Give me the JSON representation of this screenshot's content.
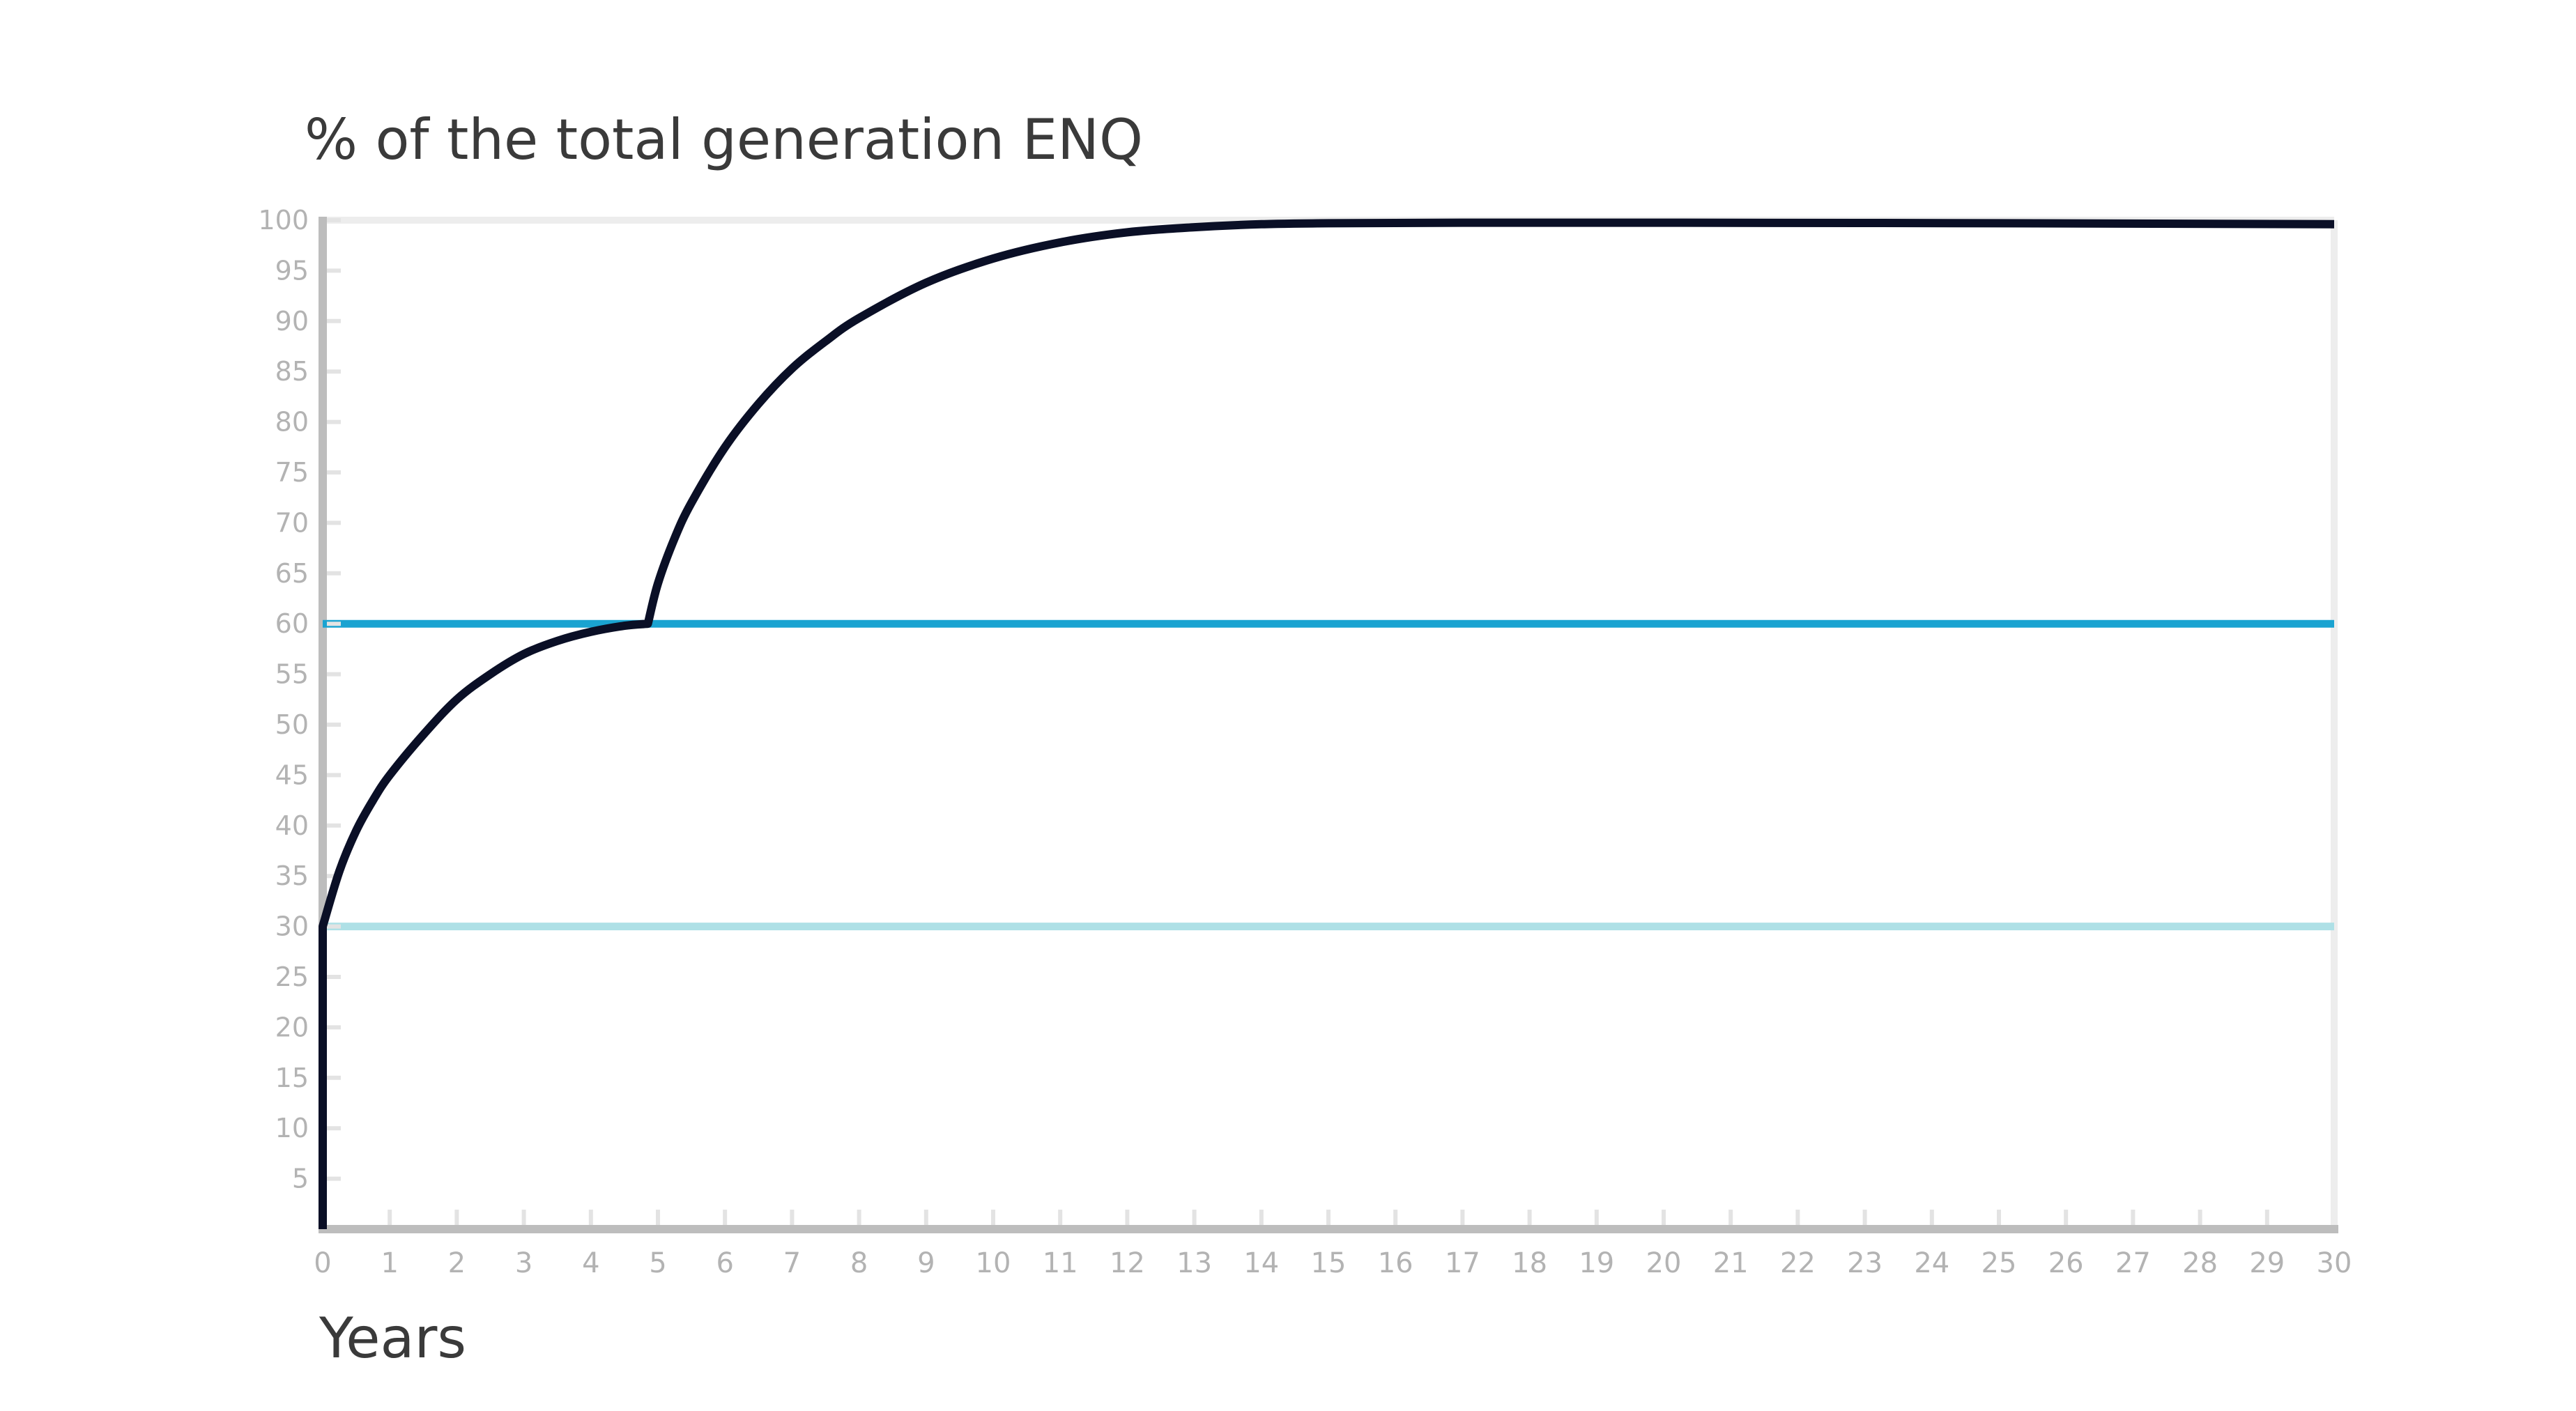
{
  "chart_data": {
    "type": "line",
    "title": "",
    "ylabel": "% of the total generation ENQ",
    "xlabel": "Years",
    "xlim": [
      0,
      30
    ],
    "ylim": [
      0,
      100
    ],
    "x_ticks": [
      0,
      1,
      2,
      3,
      4,
      5,
      6,
      7,
      8,
      9,
      10,
      11,
      12,
      13,
      14,
      15,
      16,
      17,
      18,
      19,
      20,
      21,
      22,
      23,
      24,
      25,
      26,
      27,
      28,
      29,
      30
    ],
    "y_ticks": [
      5,
      10,
      15,
      20,
      25,
      30,
      35,
      40,
      45,
      50,
      55,
      60,
      65,
      70,
      75,
      80,
      85,
      90,
      95,
      100
    ],
    "grid": false,
    "reference_lines": [
      {
        "y": 60,
        "color": "#1aa3d1"
      },
      {
        "y": 30,
        "color": "#aee0e6"
      }
    ],
    "series": [
      {
        "color": "#0a0f26",
        "x": [
          0,
          0,
          0.25,
          0.5,
          0.75,
          1,
          1.5,
          2,
          2.5,
          3,
          3.5,
          4,
          4.5,
          4.85,
          5,
          5.25,
          5.5,
          6,
          6.5,
          7,
          7.5,
          8,
          9,
          10,
          11,
          12,
          13,
          14,
          15,
          17,
          20,
          25,
          30
        ],
        "y": [
          0,
          30,
          35.5,
          39.5,
          42.5,
          45,
          49,
          52.5,
          55,
          57,
          58.3,
          59.2,
          59.8,
          60,
          64,
          68.5,
          72,
          77.5,
          81.8,
          85.3,
          88,
          90.3,
          93.8,
          96.2,
          97.8,
          98.8,
          99.3,
          99.6,
          99.7,
          99.75,
          99.75,
          99.7,
          99.6
        ]
      }
    ]
  }
}
